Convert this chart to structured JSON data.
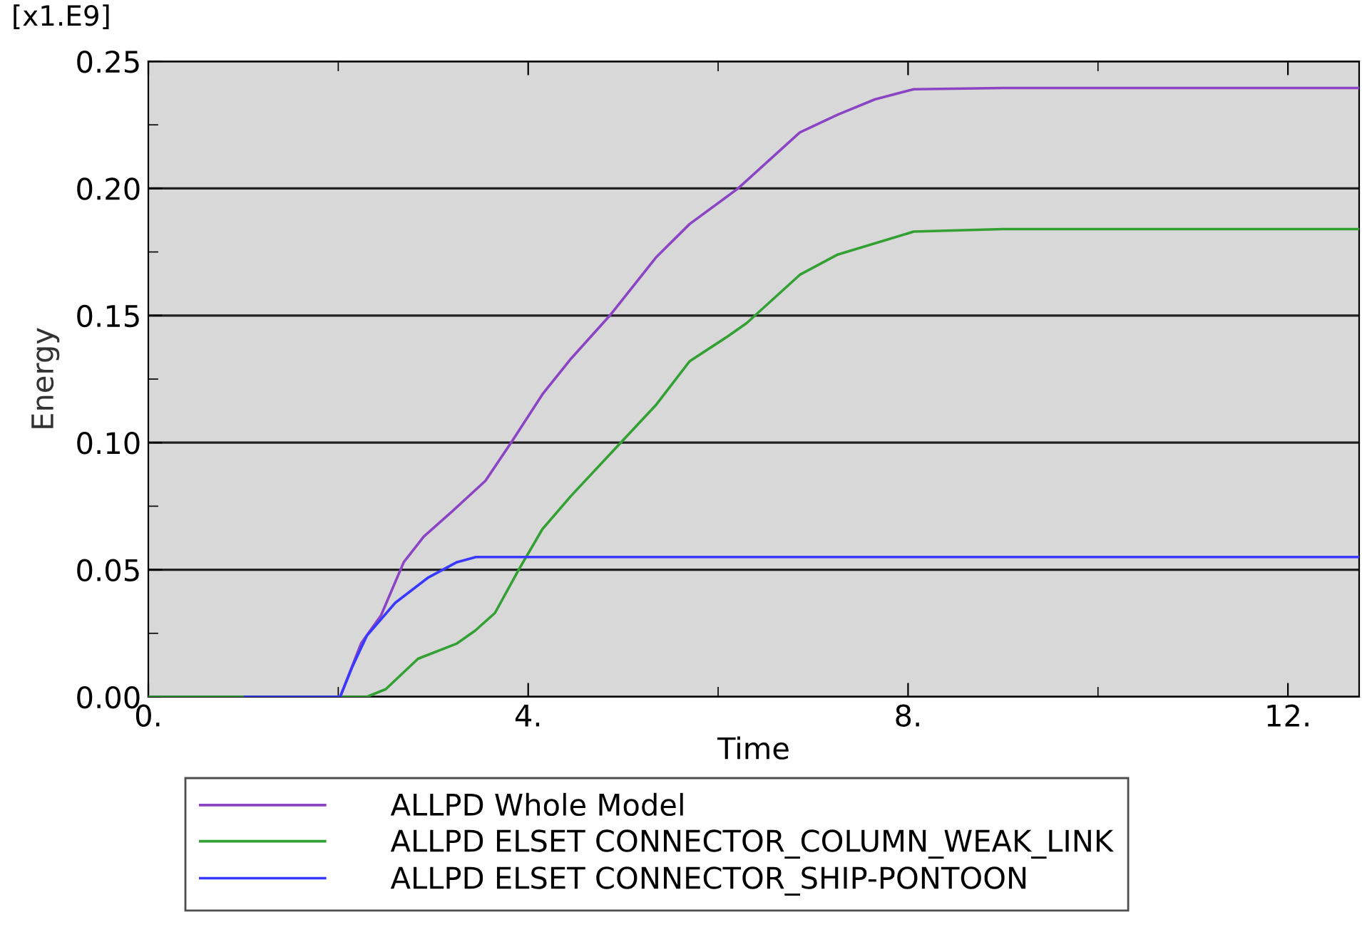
{
  "chart_data": {
    "type": "line",
    "xlabel": "Time",
    "ylabel": "Energy",
    "annotations": [
      "[x1.E9]"
    ],
    "xlim": [
      0,
      12.75
    ],
    "xticks": [
      {
        "value": 0,
        "label": "0."
      },
      {
        "value": 2,
        "label": null
      },
      {
        "value": 4,
        "label": "4."
      },
      {
        "value": 6,
        "label": null
      },
      {
        "value": 8,
        "label": "8."
      },
      {
        "value": 10,
        "label": null
      },
      {
        "value": 12,
        "label": "12."
      }
    ],
    "ylim": [
      0,
      0.25
    ],
    "yticks": [
      {
        "value": 0,
        "label": "0.00"
      },
      {
        "value": 0.025,
        "label": null
      },
      {
        "value": 0.05,
        "label": "0.05"
      },
      {
        "value": 0.075,
        "label": null
      },
      {
        "value": 0.1,
        "label": "0.10"
      },
      {
        "value": 0.125,
        "label": null
      },
      {
        "value": 0.15,
        "label": "0.15"
      },
      {
        "value": 0.175,
        "label": null
      },
      {
        "value": 0.2,
        "label": "0.20"
      },
      {
        "value": 0.225,
        "label": null
      },
      {
        "value": 0.25,
        "label": "0.25"
      }
    ],
    "grid": "y",
    "legend": "bottom",
    "marker": "none",
    "line_style": "solid",
    "series": [
      {
        "name": "ALLPD Whole Model",
        "color": "#8a44c4",
        "x": [
          0,
          2.02,
          2.24,
          2.45,
          2.69,
          2.9,
          3.2,
          3.55,
          3.82,
          4.15,
          4.45,
          4.86,
          5.35,
          5.7,
          6.21,
          6.86,
          7.26,
          7.65,
          8.06,
          9,
          12.75
        ],
        "values": [
          0,
          0,
          0.021,
          0.032,
          0.053,
          0.063,
          0.073,
          0.085,
          0.1,
          0.119,
          0.133,
          0.15,
          0.173,
          0.186,
          0.2,
          0.222,
          0.229,
          0.235,
          0.239,
          0.2395,
          0.2395
        ]
      },
      {
        "name": "ALLPD ELSET CONNECTOR_COLUMN_WEAK_LINK",
        "color": "#33a033",
        "x": [
          0,
          2.3,
          2.5,
          2.84,
          3.25,
          3.44,
          3.65,
          3.9,
          4.15,
          4.45,
          4.95,
          5.35,
          5.7,
          6.11,
          6.3,
          6.86,
          7.26,
          8.06,
          9,
          12.75
        ],
        "values": [
          0,
          0,
          0.003,
          0.015,
          0.021,
          0.026,
          0.033,
          0.05,
          0.066,
          0.079,
          0.099,
          0.115,
          0.132,
          0.142,
          0.147,
          0.166,
          0.174,
          0.183,
          0.184,
          0.184
        ]
      },
      {
        "name": "ALLPD ELSET CONNECTOR_SHIP-PONTOON",
        "color": "#3838ff",
        "x": [
          1.02,
          2.02,
          2.15,
          2.3,
          2.6,
          2.95,
          3.25,
          3.45,
          12.75
        ],
        "values": [
          0,
          0,
          0.012,
          0.024,
          0.037,
          0.047,
          0.053,
          0.055,
          0.055
        ]
      }
    ]
  }
}
